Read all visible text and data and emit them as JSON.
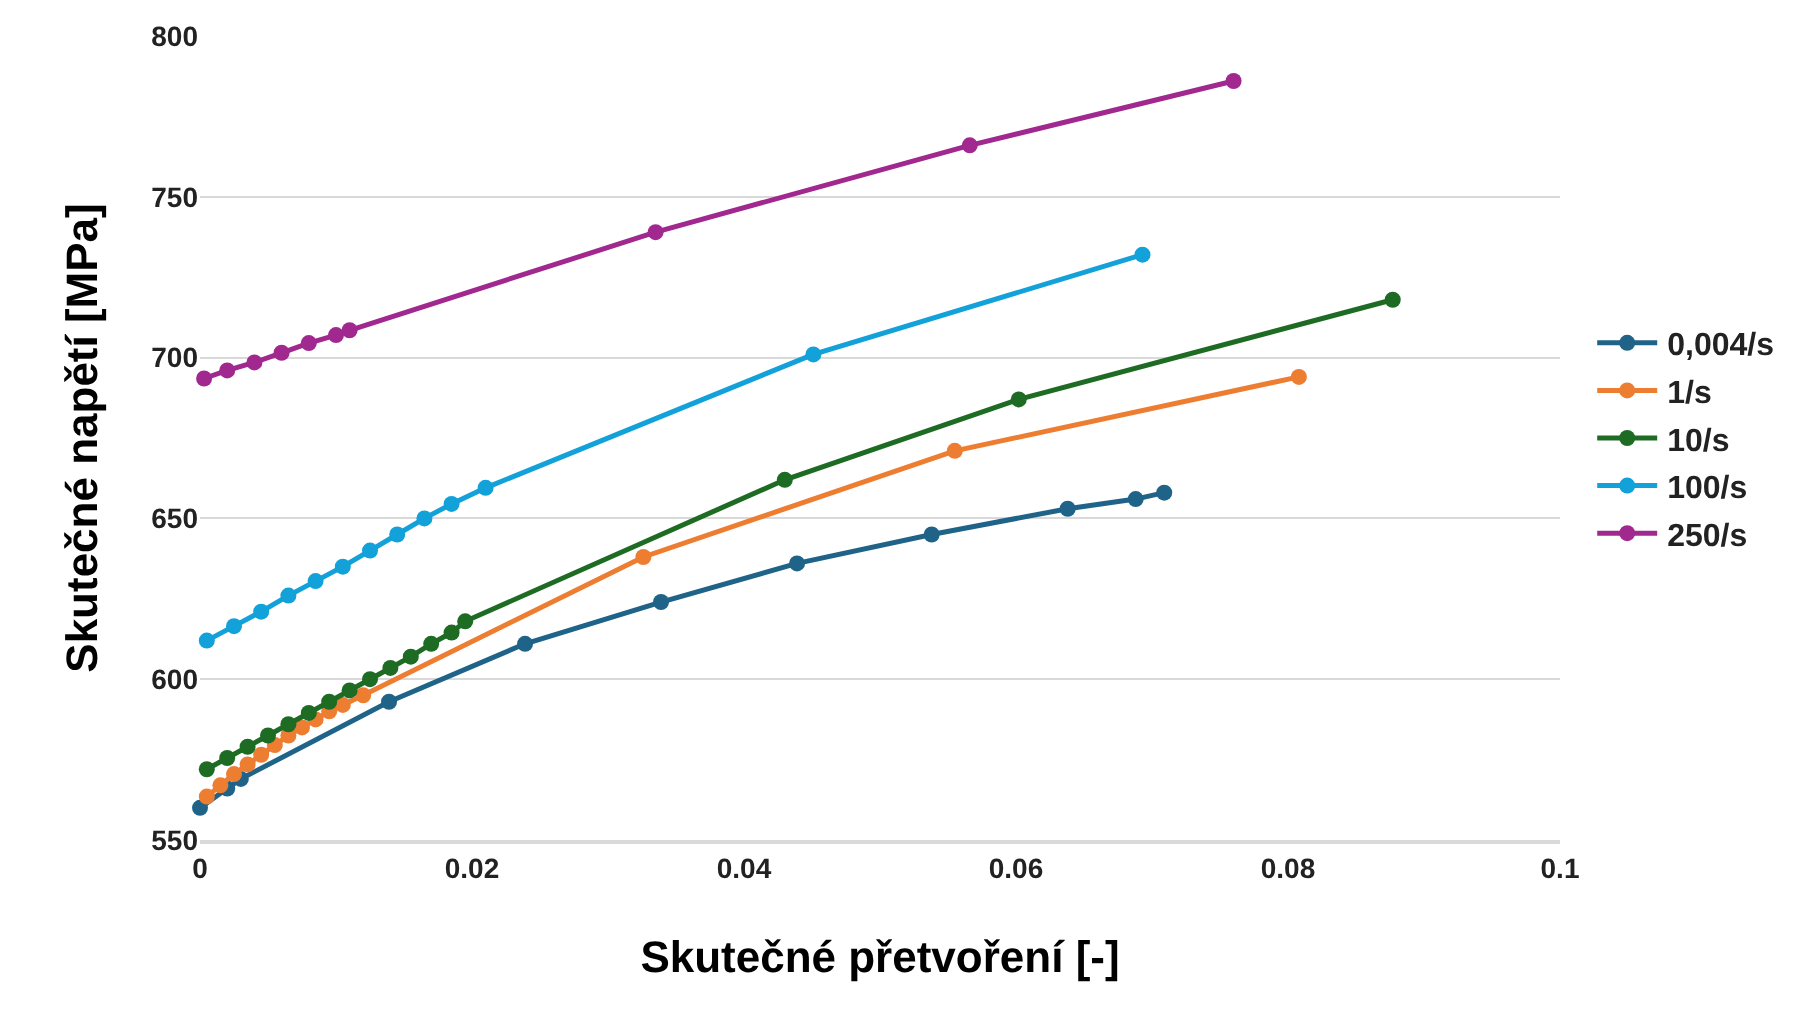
{
  "chart_data": {
    "type": "line",
    "xlabel": "Skutečné přetvoření [-]",
    "ylabel": "Skutečné napětí [MPa]",
    "xlim": [
      0,
      0.1
    ],
    "xticks": [
      0,
      0.02,
      0.04,
      0.06,
      0.08,
      0.1
    ],
    "ylim": [
      550,
      800
    ],
    "yticks": [
      550,
      600,
      650,
      700,
      750,
      800
    ],
    "grid": "y",
    "legend": "right",
    "marker": "circle",
    "line_style": "solid",
    "series": [
      {
        "name": "0,004/s",
        "color": "#1f6388",
        "x": [
          0,
          0.001,
          0.002,
          0.003,
          0.0037,
          0.0139,
          0.0239,
          0.0339,
          0.0439,
          0.0538,
          0.0638,
          0.0688,
          0.0709
        ],
        "values": [
          560,
          null,
          566,
          569,
          null,
          593,
          611,
          624,
          636,
          645,
          653,
          656,
          658
        ]
      },
      {
        "name": "1/s",
        "color": "#ed7d31",
        "x": [
          0.0005,
          0.0015,
          0.0025,
          0.0035,
          0.0045,
          0.0055,
          0.0065,
          0.0075,
          0.0085,
          0.0095,
          0.0105,
          0.012,
          0.0326,
          0.0555,
          0.0808
        ],
        "values": [
          563.5,
          567,
          570.5,
          573.5,
          576.5,
          579.5,
          582.5,
          585,
          587.5,
          590,
          592,
          595,
          638,
          671,
          694
        ]
      },
      {
        "name": "10/s",
        "color": "#1e6b24",
        "x": [
          0.0005,
          0.002,
          0.0035,
          0.005,
          0.0065,
          0.008,
          0.0095,
          0.011,
          0.0125,
          0.014,
          0.0155,
          0.017,
          0.0185,
          0.0195,
          0.043,
          0.0602,
          0.0877
        ],
        "values": [
          572,
          575.5,
          579,
          582.5,
          586,
          589.5,
          593,
          596.5,
          600,
          603.5,
          607,
          611,
          614.5,
          618,
          662,
          687,
          718
        ]
      },
      {
        "name": "100/s",
        "color": "#12a1d9",
        "x": [
          0.0005,
          0.0025,
          0.0045,
          0.0065,
          0.0085,
          0.0105,
          0.0125,
          0.0145,
          0.0165,
          0.0185,
          0.021,
          0.0451,
          0.0693
        ],
        "values": [
          612,
          616.5,
          621,
          626,
          630.5,
          635,
          640,
          645,
          650,
          654.5,
          659.5,
          701,
          732
        ]
      },
      {
        "name": "250/s",
        "color": "#a0288f",
        "x": [
          0.0003,
          0.002,
          0.004,
          0.006,
          0.008,
          0.01,
          0.011,
          0.0335,
          0.0566,
          0.076
        ],
        "values": [
          693.5,
          696,
          698.5,
          701.5,
          704.5,
          707,
          708.5,
          739,
          766,
          786
        ]
      }
    ]
  }
}
